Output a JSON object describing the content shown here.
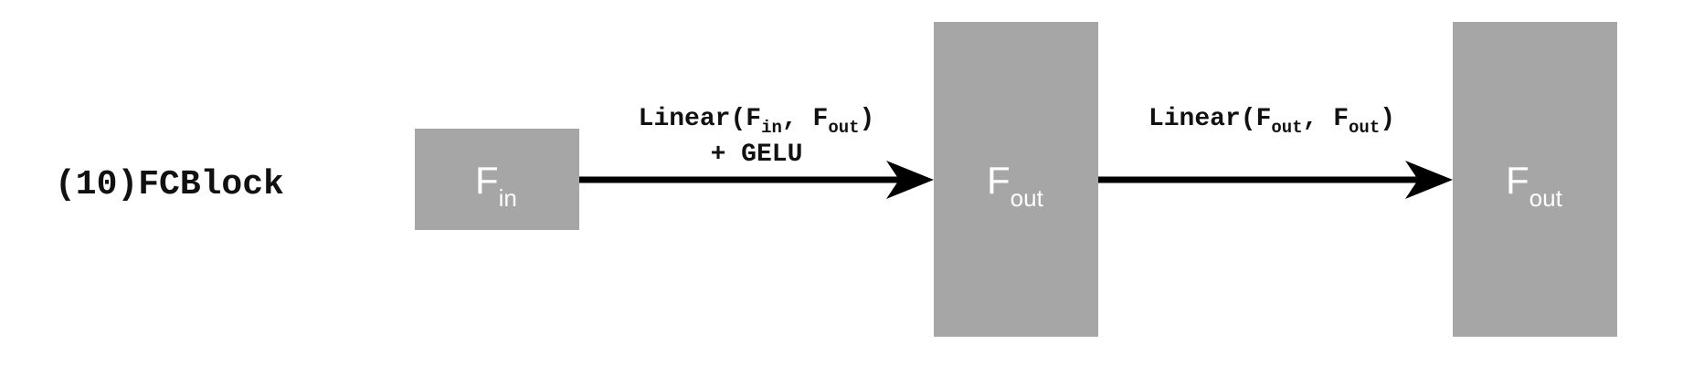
{
  "block": {
    "title": "(10)FCBlock"
  },
  "nodes": [
    {
      "id": "input",
      "main": "F",
      "sub": "in"
    },
    {
      "id": "hidden",
      "main": "F",
      "sub": "out"
    },
    {
      "id": "output",
      "main": "F",
      "sub": "out"
    }
  ],
  "edges": [
    {
      "from": "input",
      "to": "hidden",
      "op": "Linear",
      "arg1_main": "F",
      "arg1_sub": "in",
      "arg2_main": "F",
      "arg2_sub": "out",
      "extra": "+ GELU"
    },
    {
      "from": "hidden",
      "to": "output",
      "op": "Linear",
      "arg1_main": "F",
      "arg1_sub": "out",
      "arg2_main": "F",
      "arg2_sub": "out"
    }
  ],
  "colors": {
    "box_fill": "#a6a6a6",
    "arrow": "#000000",
    "text": "#111111",
    "box_text": "#ffffff"
  }
}
